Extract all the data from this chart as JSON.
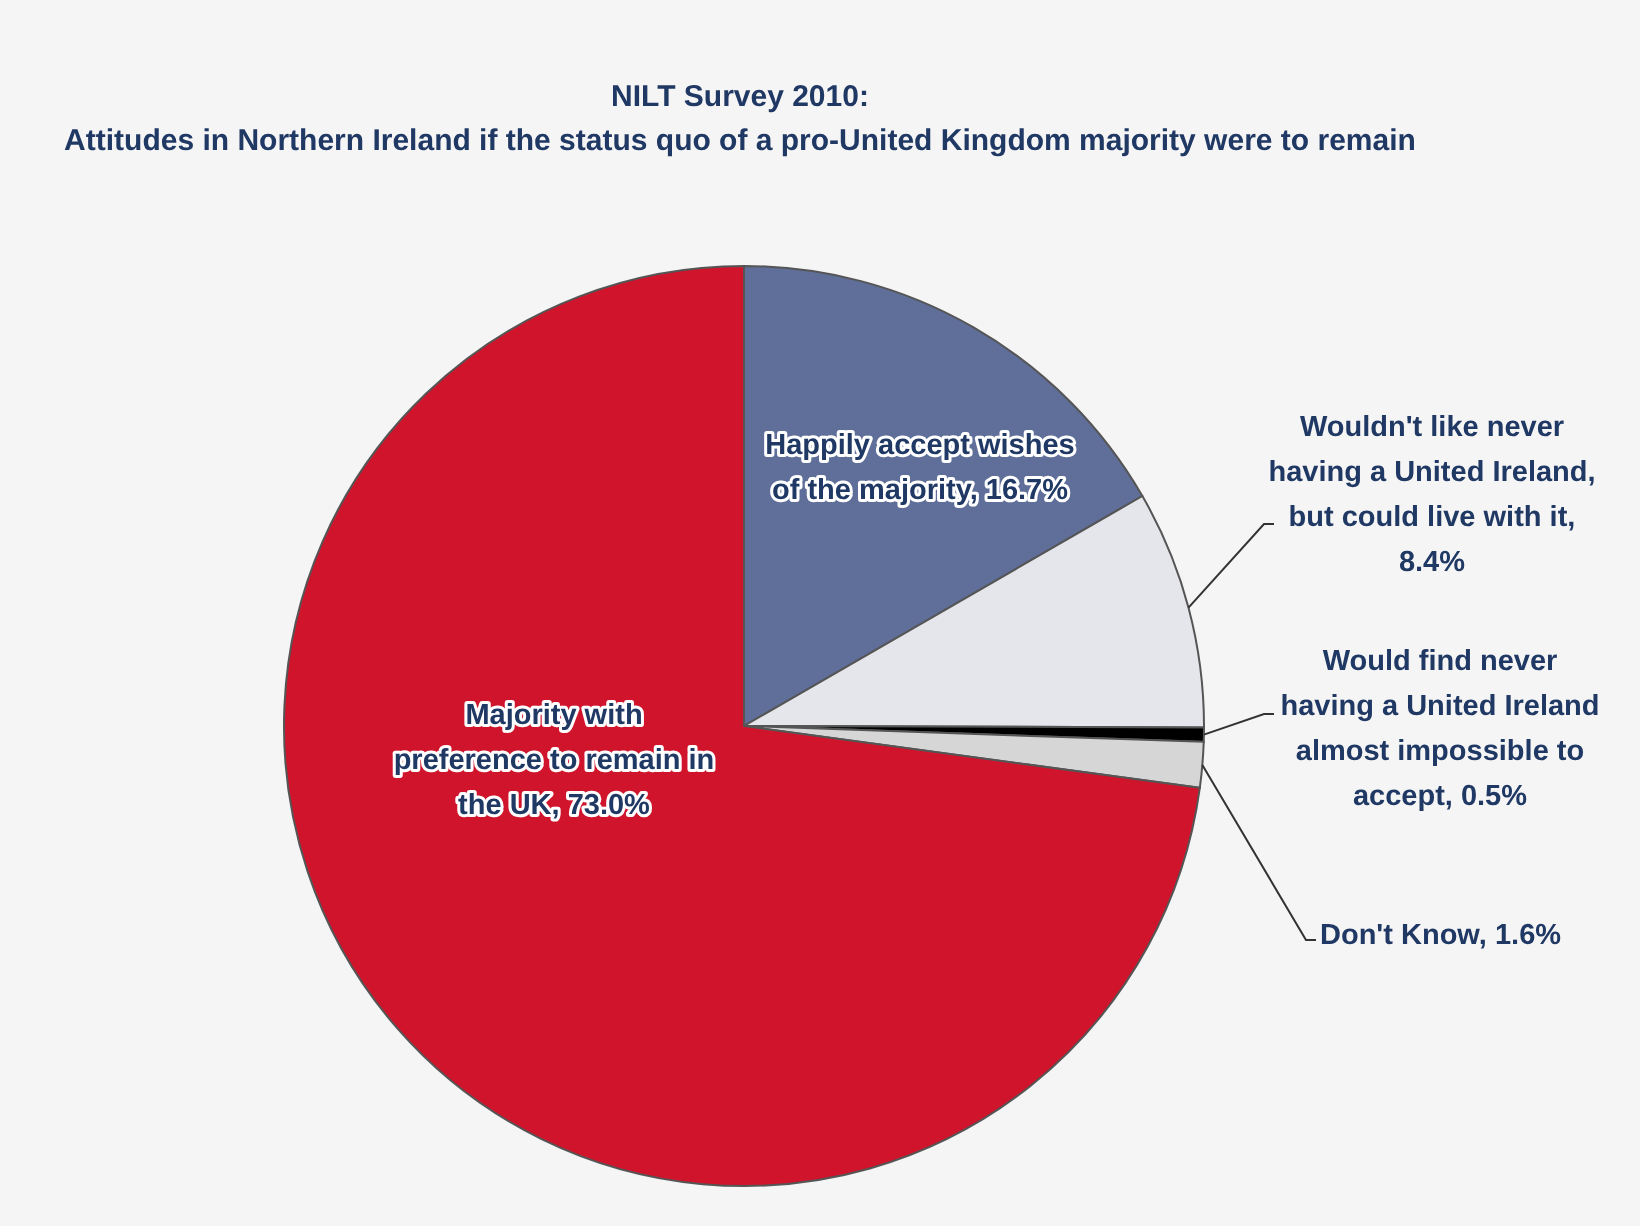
{
  "chart_data": {
    "type": "pie",
    "title": "NILT Survey 2010:\nAttitudes in Northern Ireland if the status quo of a pro-United Kingdom majority were to remain",
    "categories": [
      "Happily accept wishes of the majority, 16.7%",
      "Wouldn't like never having a United Ireland, but could live with it, 8.4%",
      "Would find never having a United Ireland almost impossible to accept, 0.5%",
      "Don't Know, 1.6%",
      "Majority with preference to remain in the UK, 73.0%"
    ],
    "values": [
      16.7,
      8.4,
      0.5,
      1.6,
      73.0
    ],
    "colors": [
      "#5f6f99",
      "#e4e6ec",
      "#000000",
      "#d6d6d6",
      "#cf142b"
    ]
  }
}
